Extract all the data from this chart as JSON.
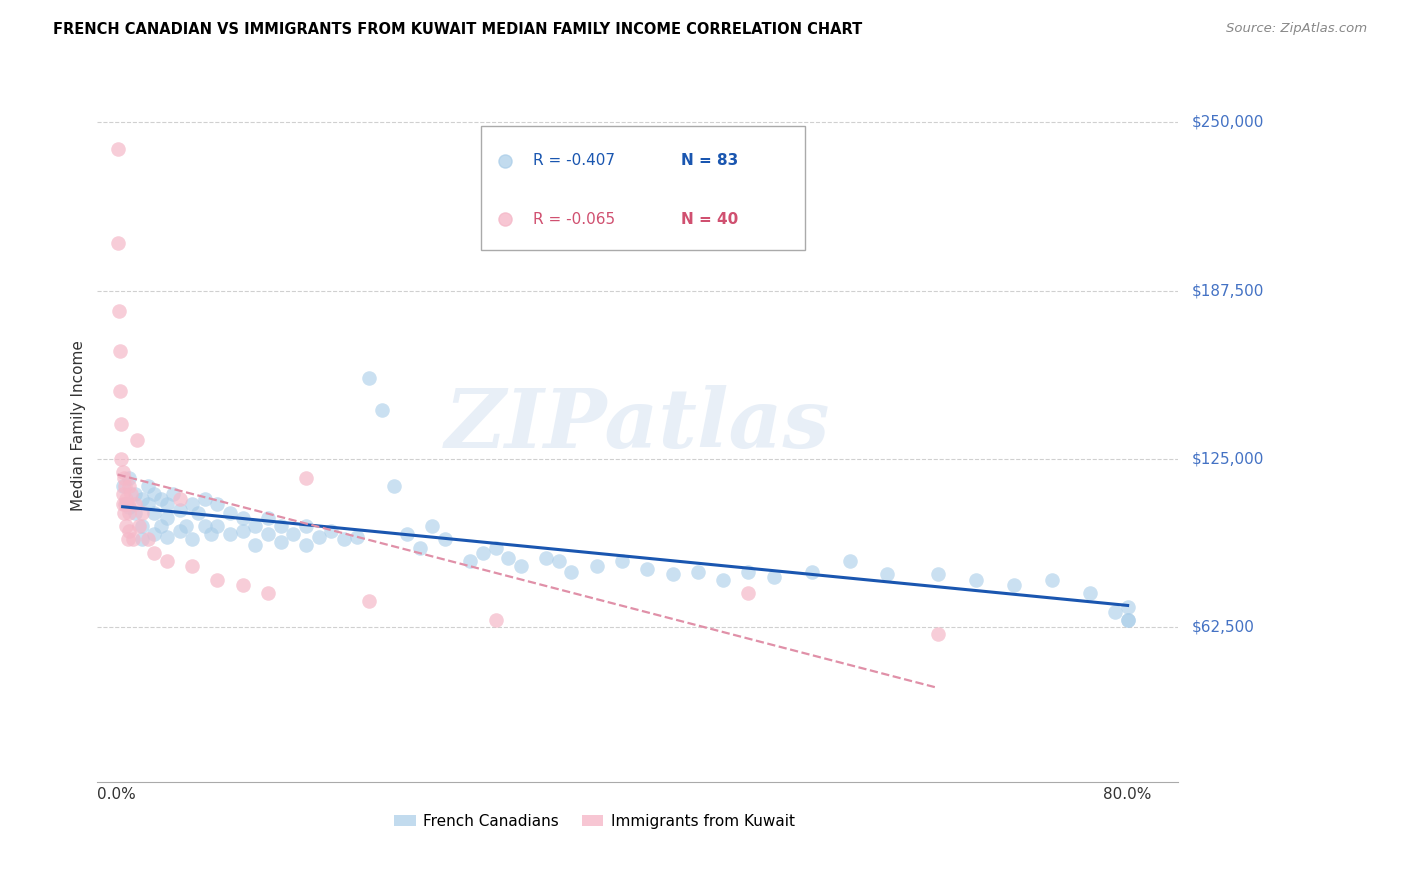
{
  "title": "FRENCH CANADIAN VS IMMIGRANTS FROM KUWAIT MEDIAN FAMILY INCOME CORRELATION CHART",
  "source": "Source: ZipAtlas.com",
  "ylabel": "Median Family Income",
  "ytick_labels": [
    "$250,000",
    "$187,500",
    "$125,000",
    "$62,500"
  ],
  "ytick_values": [
    250000,
    187500,
    125000,
    62500
  ],
  "xtick_labels": [
    "0.0%",
    "80.0%"
  ],
  "xtick_values": [
    0.0,
    0.8
  ],
  "xlim": [
    -0.015,
    0.84
  ],
  "ylim": [
    5000,
    270000
  ],
  "watermark": "ZIPatlas",
  "blue_R": -0.407,
  "blue_N": 83,
  "pink_R": -0.065,
  "pink_N": 40,
  "blue_scatter_x": [
    0.005,
    0.008,
    0.01,
    0.01,
    0.015,
    0.015,
    0.02,
    0.02,
    0.02,
    0.025,
    0.025,
    0.03,
    0.03,
    0.03,
    0.035,
    0.035,
    0.04,
    0.04,
    0.04,
    0.045,
    0.05,
    0.05,
    0.055,
    0.06,
    0.06,
    0.065,
    0.07,
    0.07,
    0.075,
    0.08,
    0.08,
    0.09,
    0.09,
    0.1,
    0.1,
    0.11,
    0.11,
    0.12,
    0.12,
    0.13,
    0.13,
    0.14,
    0.15,
    0.15,
    0.16,
    0.17,
    0.18,
    0.19,
    0.2,
    0.21,
    0.22,
    0.23,
    0.24,
    0.25,
    0.26,
    0.28,
    0.29,
    0.3,
    0.31,
    0.32,
    0.34,
    0.35,
    0.36,
    0.38,
    0.4,
    0.42,
    0.44,
    0.46,
    0.48,
    0.5,
    0.52,
    0.55,
    0.58,
    0.61,
    0.65,
    0.68,
    0.71,
    0.74,
    0.77,
    0.79,
    0.8,
    0.8,
    0.8
  ],
  "blue_scatter_y": [
    115000,
    108000,
    118000,
    107000,
    112000,
    105000,
    110000,
    100000,
    95000,
    108000,
    115000,
    112000,
    105000,
    97000,
    110000,
    100000,
    108000,
    103000,
    96000,
    112000,
    106000,
    98000,
    100000,
    108000,
    95000,
    105000,
    110000,
    100000,
    97000,
    108000,
    100000,
    105000,
    97000,
    103000,
    98000,
    100000,
    93000,
    103000,
    97000,
    100000,
    94000,
    97000,
    100000,
    93000,
    96000,
    98000,
    95000,
    96000,
    155000,
    143000,
    115000,
    97000,
    92000,
    100000,
    95000,
    87000,
    90000,
    92000,
    88000,
    85000,
    88000,
    87000,
    83000,
    85000,
    87000,
    84000,
    82000,
    83000,
    80000,
    83000,
    81000,
    83000,
    87000,
    82000,
    82000,
    80000,
    78000,
    80000,
    75000,
    68000,
    65000,
    70000,
    65000
  ],
  "pink_scatter_x": [
    0.001,
    0.001,
    0.002,
    0.003,
    0.003,
    0.004,
    0.004,
    0.005,
    0.005,
    0.005,
    0.006,
    0.006,
    0.007,
    0.007,
    0.008,
    0.008,
    0.009,
    0.009,
    0.01,
    0.01,
    0.01,
    0.012,
    0.013,
    0.015,
    0.016,
    0.018,
    0.02,
    0.025,
    0.03,
    0.04,
    0.05,
    0.06,
    0.08,
    0.1,
    0.12,
    0.15,
    0.2,
    0.3,
    0.5,
    0.65
  ],
  "pink_scatter_y": [
    240000,
    205000,
    180000,
    165000,
    150000,
    138000,
    125000,
    120000,
    112000,
    108000,
    118000,
    105000,
    115000,
    108000,
    110000,
    100000,
    108000,
    95000,
    115000,
    105000,
    98000,
    112000,
    95000,
    108000,
    132000,
    100000,
    105000,
    95000,
    90000,
    87000,
    110000,
    85000,
    80000,
    78000,
    75000,
    118000,
    72000,
    65000,
    75000,
    60000
  ]
}
